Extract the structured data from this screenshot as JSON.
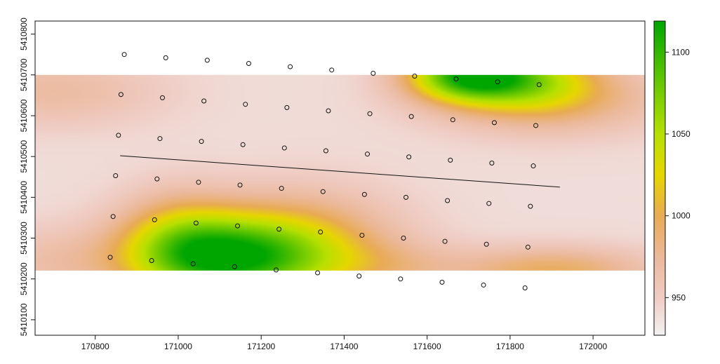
{
  "chart_data": {
    "type": "heatmap",
    "title": "",
    "xlabel": "",
    "ylabel": "",
    "xlim": [
      170655,
      172125
    ],
    "ylim": [
      5410062,
      5410832
    ],
    "raster_extent": {
      "x": [
        170655,
        172125
      ],
      "y": [
        5410220,
        5410700
      ]
    },
    "x_ticks": [
      {
        "value": 170800,
        "label": "170800"
      },
      {
        "value": 171000,
        "label": "171000"
      },
      {
        "value": 171200,
        "label": "171200"
      },
      {
        "value": 171400,
        "label": "171400"
      },
      {
        "value": 171600,
        "label": "171600"
      },
      {
        "value": 171800,
        "label": "171800"
      },
      {
        "value": 172000,
        "label": "172000"
      }
    ],
    "y_ticks": [
      {
        "value": 5410100,
        "label": "5410100"
      },
      {
        "value": 5410200,
        "label": "5410200"
      },
      {
        "value": 5410300,
        "label": "5410300"
      },
      {
        "value": 5410400,
        "label": "5410400"
      },
      {
        "value": 5410500,
        "label": "5410500"
      },
      {
        "value": 5410600,
        "label": "5410600"
      },
      {
        "value": 5410700,
        "label": "5410700"
      },
      {
        "value": 5410800,
        "label": "5410800"
      }
    ],
    "colorbar": {
      "range": [
        927,
        1119
      ],
      "ticks": [
        {
          "value": 950,
          "label": "950"
        },
        {
          "value": 1000,
          "label": "1000"
        },
        {
          "value": 1050,
          "label": "1050"
        },
        {
          "value": 1100,
          "label": "1100"
        }
      ],
      "stops": [
        {
          "value": 927,
          "color": "#f2f2f2"
        },
        {
          "value": 950,
          "color": "#efccc4"
        },
        {
          "value": 975,
          "color": "#ebb89a"
        },
        {
          "value": 1000,
          "color": "#e8ab55"
        },
        {
          "value": 1025,
          "color": "#e6d600"
        },
        {
          "value": 1050,
          "color": "#b6e000"
        },
        {
          "value": 1080,
          "color": "#6ac800"
        },
        {
          "value": 1119,
          "color": "#00a600"
        }
      ]
    },
    "surface": {
      "base": 940,
      "features": [
        {
          "x": 171120,
          "y": 5410250,
          "sx": 160,
          "sy": 70,
          "amp": 150
        },
        {
          "x": 171000,
          "y": 5410300,
          "sx": 100,
          "sy": 80,
          "amp": 55
        },
        {
          "x": 171300,
          "y": 5410290,
          "sx": 160,
          "sy": 90,
          "amp": 55
        },
        {
          "x": 171700,
          "y": 5410700,
          "sx": 100,
          "sy": 45,
          "amp": 160
        },
        {
          "x": 171860,
          "y": 5410690,
          "sx": 110,
          "sy": 55,
          "amp": 70
        },
        {
          "x": 171900,
          "y": 5410640,
          "sx": 200,
          "sy": 60,
          "amp": 45
        },
        {
          "x": 170700,
          "y": 5410660,
          "sx": 180,
          "sy": 60,
          "amp": 30
        },
        {
          "x": 171900,
          "y": 5410220,
          "sx": 170,
          "sy": 40,
          "amp": 55
        },
        {
          "x": 171500,
          "y": 5410230,
          "sx": 130,
          "sy": 45,
          "amp": 25
        },
        {
          "x": 170700,
          "y": 5410240,
          "sx": 120,
          "sy": 60,
          "amp": 25
        }
      ]
    },
    "points": [
      {
        "x": 170870,
        "y": 5410750
      },
      {
        "x": 170970,
        "y": 5410742
      },
      {
        "x": 171070,
        "y": 5410736
      },
      {
        "x": 171170,
        "y": 5410728
      },
      {
        "x": 171270,
        "y": 5410720
      },
      {
        "x": 171370,
        "y": 5410712
      },
      {
        "x": 171470,
        "y": 5410704
      },
      {
        "x": 171570,
        "y": 5410697
      },
      {
        "x": 171670,
        "y": 5410690
      },
      {
        "x": 171770,
        "y": 5410683
      },
      {
        "x": 171870,
        "y": 5410676
      },
      {
        "x": 170862,
        "y": 5410652
      },
      {
        "x": 170962,
        "y": 5410644
      },
      {
        "x": 171062,
        "y": 5410636
      },
      {
        "x": 171162,
        "y": 5410628
      },
      {
        "x": 171262,
        "y": 5410620
      },
      {
        "x": 171362,
        "y": 5410612
      },
      {
        "x": 171462,
        "y": 5410605
      },
      {
        "x": 171562,
        "y": 5410598
      },
      {
        "x": 171662,
        "y": 5410590
      },
      {
        "x": 171762,
        "y": 5410583
      },
      {
        "x": 171862,
        "y": 5410576
      },
      {
        "x": 170856,
        "y": 5410552
      },
      {
        "x": 170956,
        "y": 5410544
      },
      {
        "x": 171056,
        "y": 5410537
      },
      {
        "x": 171156,
        "y": 5410529
      },
      {
        "x": 171256,
        "y": 5410521
      },
      {
        "x": 171356,
        "y": 5410514
      },
      {
        "x": 171456,
        "y": 5410506
      },
      {
        "x": 171556,
        "y": 5410499
      },
      {
        "x": 171656,
        "y": 5410491
      },
      {
        "x": 171756,
        "y": 5410484
      },
      {
        "x": 171856,
        "y": 5410477
      },
      {
        "x": 170849,
        "y": 5410453
      },
      {
        "x": 170949,
        "y": 5410445
      },
      {
        "x": 171049,
        "y": 5410437
      },
      {
        "x": 171149,
        "y": 5410430
      },
      {
        "x": 171249,
        "y": 5410422
      },
      {
        "x": 171349,
        "y": 5410414
      },
      {
        "x": 171449,
        "y": 5410407
      },
      {
        "x": 171549,
        "y": 5410400
      },
      {
        "x": 171649,
        "y": 5410392
      },
      {
        "x": 171749,
        "y": 5410385
      },
      {
        "x": 171849,
        "y": 5410378
      },
      {
        "x": 170843,
        "y": 5410353
      },
      {
        "x": 170943,
        "y": 5410345
      },
      {
        "x": 171043,
        "y": 5410337
      },
      {
        "x": 171143,
        "y": 5410330
      },
      {
        "x": 171243,
        "y": 5410322
      },
      {
        "x": 171343,
        "y": 5410315
      },
      {
        "x": 171443,
        "y": 5410307
      },
      {
        "x": 171543,
        "y": 5410300
      },
      {
        "x": 171643,
        "y": 5410292
      },
      {
        "x": 171743,
        "y": 5410285
      },
      {
        "x": 171843,
        "y": 5410278
      },
      {
        "x": 170836,
        "y": 5410253
      },
      {
        "x": 170936,
        "y": 5410245
      },
      {
        "x": 171036,
        "y": 5410237
      },
      {
        "x": 171136,
        "y": 5410230
      },
      {
        "x": 171236,
        "y": 5410222
      },
      {
        "x": 171336,
        "y": 5410215
      },
      {
        "x": 171436,
        "y": 5410207
      },
      {
        "x": 171536,
        "y": 5410200
      },
      {
        "x": 171636,
        "y": 5410192
      },
      {
        "x": 171736,
        "y": 5410185
      },
      {
        "x": 171836,
        "y": 5410178
      }
    ],
    "line": [
      {
        "x": 170860,
        "y": 5410502
      },
      {
        "x": 171920,
        "y": 5410425
      }
    ],
    "grid": false,
    "legend": "right colorbar"
  }
}
